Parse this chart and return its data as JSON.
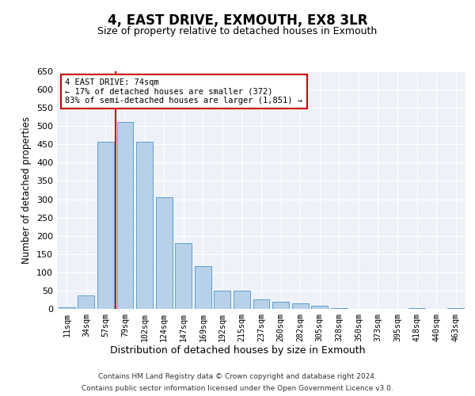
{
  "title": "4, EAST DRIVE, EXMOUTH, EX8 3LR",
  "subtitle": "Size of property relative to detached houses in Exmouth",
  "xlabel": "Distribution of detached houses by size in Exmouth",
  "ylabel": "Number of detached properties",
  "categories": [
    "11sqm",
    "34sqm",
    "57sqm",
    "79sqm",
    "102sqm",
    "124sqm",
    "147sqm",
    "169sqm",
    "192sqm",
    "215sqm",
    "237sqm",
    "260sqm",
    "282sqm",
    "305sqm",
    "328sqm",
    "350sqm",
    "373sqm",
    "395sqm",
    "418sqm",
    "440sqm",
    "463sqm"
  ],
  "values": [
    5,
    37,
    458,
    512,
    457,
    305,
    180,
    118,
    50,
    50,
    27,
    20,
    15,
    8,
    3,
    1,
    0,
    0,
    2,
    0,
    2
  ],
  "bar_color": "#b8d0e8",
  "bar_edge_color": "#5a9fd4",
  "ylim": [
    0,
    650
  ],
  "yticks": [
    0,
    50,
    100,
    150,
    200,
    250,
    300,
    350,
    400,
    450,
    500,
    550,
    600,
    650
  ],
  "annotation_text": "4 EAST DRIVE: 74sqm\n← 17% of detached houses are smaller (372)\n83% of semi-detached houses are larger (1,851) →",
  "annotation_box_color": "#ffffff",
  "annotation_box_edge_color": "#cc0000",
  "line_color": "#cc0000",
  "bg_color": "#eef2f8",
  "footer_line1": "Contains HM Land Registry data © Crown copyright and database right 2024.",
  "footer_line2": "Contains public sector information licensed under the Open Government Licence v3.0."
}
